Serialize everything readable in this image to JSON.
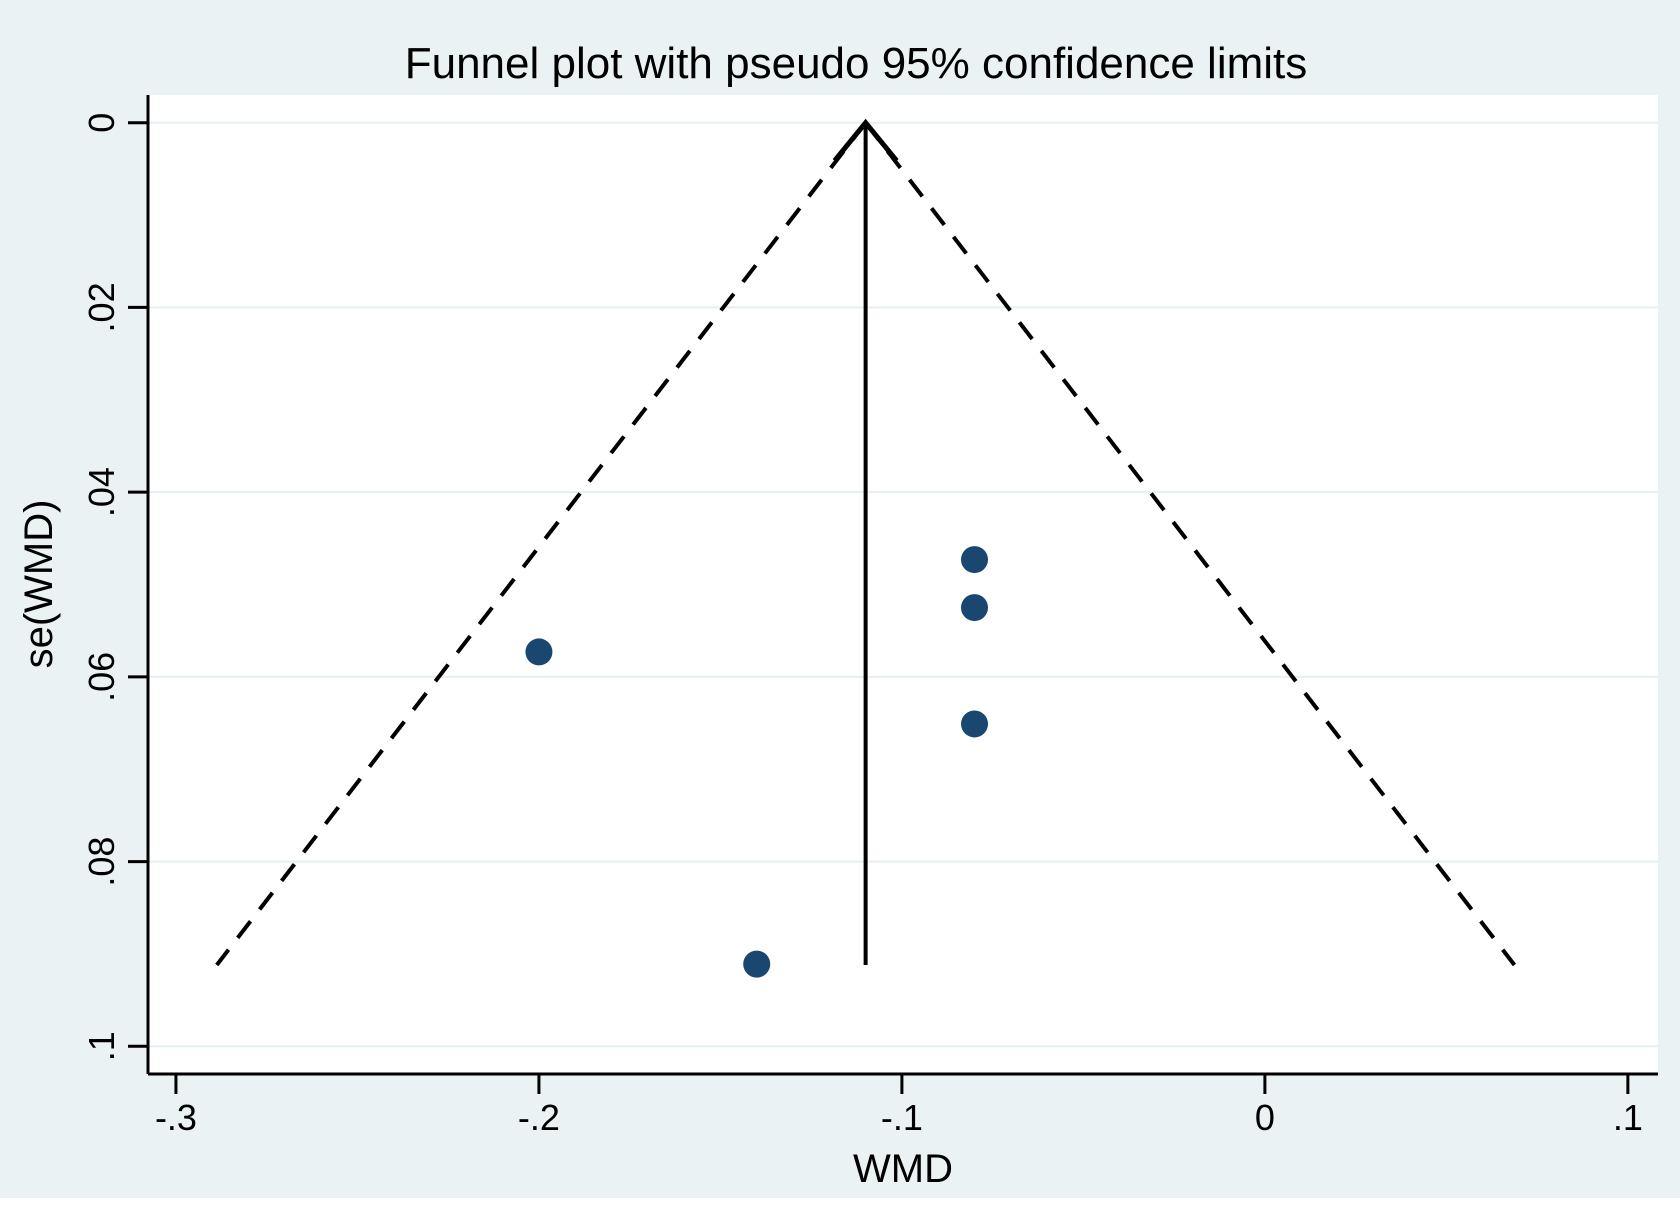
{
  "window": {
    "background_color": "#eaf2f3",
    "plot_area_color": "#ffffff"
  },
  "colors": {
    "marker": "#1a476f",
    "axis": "#000000",
    "gridline": "#e6eff1",
    "line": "#000000",
    "text": "#000000"
  },
  "chart_data": {
    "type": "scatter",
    "subtype": "funnel-plot",
    "title": "Funnel plot with pseudo 95% confidence limits",
    "xlabel": "WMD",
    "ylabel": "se(WMD)",
    "x_ticks": [
      -0.3,
      -0.2,
      -0.1,
      0,
      0.1
    ],
    "x_tick_labels": [
      "-.3",
      "-.2",
      "-.1",
      "0",
      ".1"
    ],
    "y_ticks": [
      0,
      0.02,
      0.04,
      0.06,
      0.08,
      0.1
    ],
    "y_tick_labels": [
      "0",
      ".02",
      ".04",
      ".06",
      ".08",
      ".1"
    ],
    "xlim": [
      -0.3077,
      0.1083
    ],
    "ylim": [
      -0.003,
      0.103
    ],
    "y_axis_reversed": true,
    "grid": true,
    "points": [
      {
        "wmd": -0.2,
        "se": 0.0573
      },
      {
        "wmd": -0.08,
        "se": 0.0473
      },
      {
        "wmd": -0.08,
        "se": 0.0525
      },
      {
        "wmd": -0.08,
        "se": 0.0651
      },
      {
        "wmd": -0.14,
        "se": 0.0911
      }
    ],
    "pooled_estimate_wmd": -0.11,
    "confidence_multiplier": 1.96,
    "funnel_se_max": 0.0912
  }
}
